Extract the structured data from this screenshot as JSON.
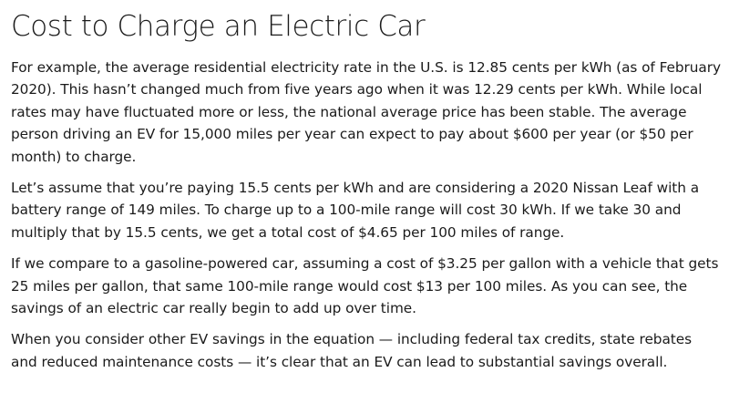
{
  "article": {
    "title": "Cost to Charge an Electric Car",
    "paragraphs": [
      "For example, the average residential electricity rate in the U.S. is 12.85 cents per kWh (as of February 2020). This hasn’t changed much from five years ago when it was 12.29 cents per kWh. While local rates may have fluctuated more or less, the national average price has been stable. The average person driving an EV for 15,000 miles per year can expect to pay about $600 per year (or $50 per month) to charge.",
      "Let’s assume that you’re paying 15.5 cents per kWh and are considering a 2020 Nissan Leaf with a battery range of 149 miles. To charge up to a 100-mile range will cost 30 kWh. If we take 30 and multiply that by 15.5 cents, we get a total cost of $4.65 per 100 miles of range.",
      "If we compare to a gasoline-powered car, assuming a cost of $3.25 per gallon with a vehicle that gets 25 miles per gallon, that same 100-mile range would cost $13 per 100 miles. As you can see, the savings of an electric car really begin to add up over time.",
      "When you consider other EV savings in the equation — including federal tax credits, state rebates and reduced maintenance costs — it’s clear that an EV can lead to substantial savings overall."
    ]
  }
}
